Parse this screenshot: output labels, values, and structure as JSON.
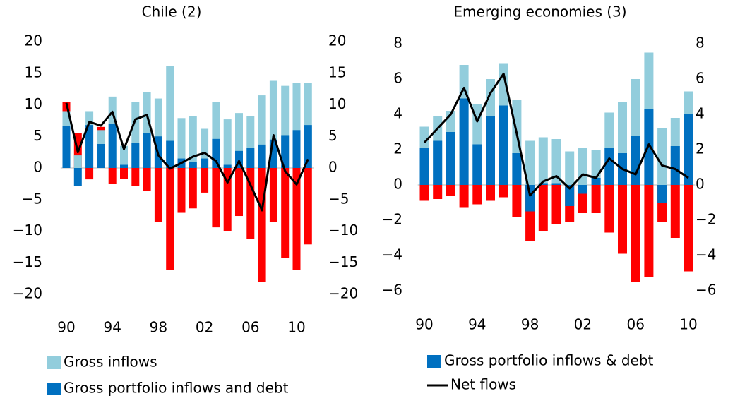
{
  "chart_data": [
    {
      "type": "bar",
      "title": "Chile (2)",
      "categories": [
        "90",
        null,
        null,
        null,
        "94",
        null,
        null,
        null,
        "98",
        null,
        null,
        null,
        "02",
        null,
        null,
        null,
        "06",
        null,
        null,
        null,
        "10",
        null
      ],
      "ylim": [
        -20,
        20
      ],
      "yticks": [
        {
          "value": -20,
          "label": "−20"
        },
        {
          "value": -15,
          "label": "−15"
        },
        {
          "value": -10,
          "label": "−10"
        },
        {
          "value": -5,
          "label": "−5"
        },
        0,
        5,
        10,
        15,
        20
      ],
      "y2lim": [
        -20,
        20
      ],
      "y2ticks": [
        {
          "value": -20,
          "label": "−20"
        },
        {
          "value": -15,
          "label": "−15"
        },
        {
          "value": -10,
          "label": "−10"
        },
        {
          "value": -5,
          "label": "−5"
        },
        0,
        5,
        10,
        15,
        20
      ],
      "series": [
        {
          "color": "#ff0000",
          "values": [
            10.5,
            5.5,
            -1.8,
            6.5,
            -2.5,
            -1.7,
            -2.8,
            -3.6,
            -8.6,
            -16.2,
            -7.1,
            -6.4,
            -3.9,
            -9.4,
            -10,
            -7.6,
            -11.2,
            -18,
            -8.6,
            -14.2,
            -16.2,
            -12.1
          ]
        },
        {
          "name": "Gross inflows",
          "color": "#92cddc",
          "values": [
            9,
            2,
            9,
            6,
            11.3,
            3.5,
            10.5,
            12,
            11,
            16.2,
            7.9,
            8.2,
            6.2,
            10.5,
            7.7,
            8.7,
            8.2,
            11.5,
            13.8,
            13,
            13.5,
            13.5
          ]
        },
        {
          "name": "Gross portfolio inflows and debt",
          "color": "#0070c0",
          "values": [
            6.6,
            -2.8,
            6.8,
            3.8,
            7,
            0.5,
            4,
            5.5,
            5,
            4.3,
            1.5,
            1,
            1.5,
            4.6,
            0.5,
            2.7,
            3.2,
            3.7,
            4.5,
            5.2,
            6,
            6.8
          ]
        },
        {
          "type": "line",
          "color": "#000000",
          "values": [
            10.3,
            2.5,
            7.3,
            6.7,
            8.9,
            3,
            7.7,
            8.4,
            2,
            -0.1,
            0.8,
            1.8,
            2.4,
            1.1,
            -2.3,
            1.1,
            -2.7,
            -6.7,
            5.2,
            -0.5,
            -2.6,
            1.4
          ]
        }
      ]
    },
    {
      "type": "bar",
      "title": "Emerging economies (3)",
      "categories": [
        "90",
        null,
        null,
        null,
        "94",
        null,
        null,
        null,
        "98",
        null,
        null,
        null,
        "02",
        null,
        null,
        null,
        "06",
        null,
        null,
        null,
        "10"
      ],
      "ylim": [
        -6,
        8
      ],
      "yticks": [
        {
          "value": -6,
          "label": "−6"
        },
        {
          "value": -4,
          "label": "−4"
        },
        {
          "value": -2,
          "label": "−2"
        },
        0,
        2,
        4,
        6,
        8
      ],
      "y2lim": [
        -6,
        8
      ],
      "y2ticks": [
        {
          "value": -6,
          "label": "−6"
        },
        {
          "value": -4,
          "label": "−4"
        },
        {
          "value": -2,
          "label": "−2"
        },
        0,
        2,
        4,
        6,
        8
      ],
      "series": [
        {
          "color": "#ff0000",
          "values": [
            -0.9,
            -0.8,
            -0.6,
            -1.3,
            -1.1,
            -0.9,
            -0.7,
            -1.8,
            -3.2,
            -2.6,
            -2.2,
            -2.1,
            -1.6,
            -1.6,
            -2.7,
            -3.9,
            -5.5,
            -5.2,
            -2.1,
            -3,
            -4.9
          ]
        },
        {
          "color": "#92cddc",
          "values": [
            3.3,
            3.9,
            4.2,
            6.8,
            4.6,
            6,
            6.9,
            4.8,
            2.5,
            2.7,
            2.6,
            1.9,
            2.1,
            2,
            4.1,
            4.7,
            6,
            7.5,
            3.2,
            3.8,
            5.3
          ]
        },
        {
          "name": "Gross portfolio inflows & debt",
          "color": "#0070c0",
          "values": [
            2.1,
            2.5,
            3,
            4.9,
            2.3,
            3.9,
            4.5,
            1.8,
            -1.5,
            0.1,
            0.1,
            -1.2,
            -0.5,
            0.4,
            2.1,
            1.8,
            2.8,
            4.3,
            -1,
            2.2,
            4
          ]
        },
        {
          "type": "line",
          "name": "Net flows",
          "color": "#000000",
          "values": [
            2.4,
            3.2,
            4,
            5.5,
            3.6,
            5.2,
            6.3,
            2.9,
            -0.6,
            0.2,
            0.5,
            -0.2,
            0.6,
            0.4,
            1.5,
            0.9,
            0.6,
            2.3,
            1.1,
            0.9,
            0.4
          ]
        }
      ]
    }
  ]
}
